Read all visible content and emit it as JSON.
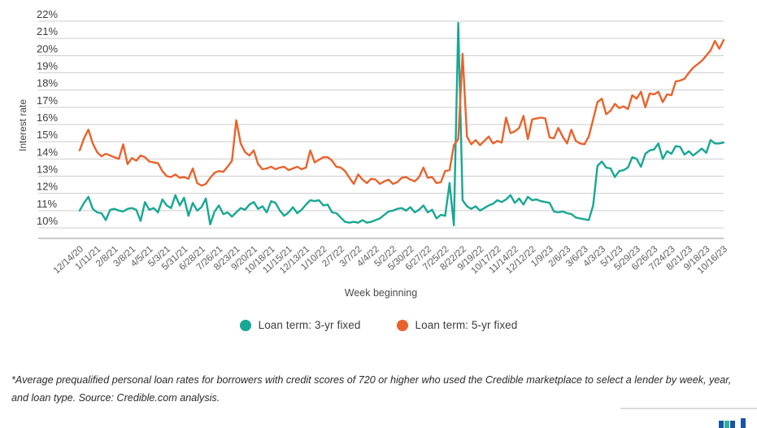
{
  "chart": {
    "y_axis_title": "Interest rate",
    "x_axis_title": "Week beginning",
    "footnote": "*Average prequalified personal loan rates for borrowers with credit scores of 720 or higher who used the Credible marketplace to select a lender by week, year, and loan type. Source: Credible.com analysis."
  },
  "legend": {
    "items": [
      {
        "label": "Loan term: 3-yr fixed",
        "color": "#18a794"
      },
      {
        "label": "Loan term: 5-yr fixed",
        "color": "#e8632c"
      }
    ]
  },
  "branding": {
    "bars": [
      {
        "color": "#1a55a5",
        "height": 9,
        "x": 0,
        "lift": 0
      },
      {
        "color": "#2eb39f",
        "height": 9,
        "x": 7,
        "lift": 0
      },
      {
        "color": "#1a55a5",
        "height": 9,
        "x": 14,
        "lift": 0
      },
      {
        "color": "#1a55a5",
        "height": 12,
        "x": 27,
        "lift": 0
      }
    ]
  },
  "chart_data": {
    "type": "line",
    "title": "",
    "xlabel": "Week beginning",
    "ylabel": "Interest rate",
    "ylim": [
      10,
      22
    ],
    "grid": true,
    "legend_position": "bottom",
    "y_ticks": [
      22,
      21,
      20,
      19,
      18,
      17,
      16,
      15,
      14,
      13,
      12,
      11,
      10
    ],
    "y_tick_labels": [
      "22%",
      "21%",
      "20%",
      "19%",
      "18%",
      "17%",
      "16%",
      "15%",
      "14%",
      "13%",
      "12%",
      "11%",
      "10%"
    ],
    "x_tick_step": 4,
    "x": [
      "12/14/20",
      "12/21/20",
      "12/28/20",
      "1/4/21",
      "1/11/21",
      "1/18/21",
      "1/25/21",
      "2/1/21",
      "2/8/21",
      "2/15/21",
      "2/22/21",
      "3/1/21",
      "3/8/21",
      "3/15/21",
      "3/22/21",
      "3/29/21",
      "4/5/21",
      "4/12/21",
      "4/19/21",
      "4/26/21",
      "5/3/21",
      "5/10/21",
      "5/17/21",
      "5/24/21",
      "5/31/21",
      "6/7/21",
      "6/14/21",
      "6/21/21",
      "6/28/21",
      "7/5/21",
      "7/12/21",
      "7/19/21",
      "7/26/21",
      "8/2/21",
      "8/9/21",
      "8/16/21",
      "8/23/21",
      "8/30/21",
      "9/6/21",
      "9/13/21",
      "9/20/21",
      "9/27/21",
      "10/4/21",
      "10/11/21",
      "10/18/21",
      "10/25/21",
      "11/1/21",
      "11/8/21",
      "11/15/21",
      "11/22/21",
      "11/29/21",
      "12/6/21",
      "12/13/21",
      "12/20/21",
      "12/27/21",
      "1/3/22",
      "1/10/22",
      "1/17/22",
      "1/24/22",
      "1/31/22",
      "2/7/22",
      "2/14/22",
      "2/21/22",
      "2/28/22",
      "3/7/22",
      "3/14/22",
      "3/21/22",
      "3/28/22",
      "4/4/22",
      "4/11/22",
      "4/18/22",
      "4/25/22",
      "5/2/22",
      "5/9/22",
      "5/16/22",
      "5/23/22",
      "5/30/22",
      "6/6/22",
      "6/13/22",
      "6/20/22",
      "6/27/22",
      "7/4/22",
      "7/11/22",
      "7/18/22",
      "7/25/22",
      "8/1/22",
      "8/8/22",
      "8/15/22",
      "8/22/22",
      "8/29/22",
      "9/5/22",
      "9/12/22",
      "9/19/22",
      "9/26/22",
      "10/3/22",
      "10/10/22",
      "10/17/22",
      "10/24/22",
      "10/31/22",
      "11/7/22",
      "11/14/22",
      "11/21/22",
      "11/28/22",
      "12/5/22",
      "12/12/22",
      "12/19/22",
      "12/26/22",
      "1/2/23",
      "1/9/23",
      "1/16/23",
      "1/23/23",
      "1/30/23",
      "2/6/23",
      "2/13/23",
      "2/20/23",
      "2/27/23",
      "3/6/23",
      "3/13/23",
      "3/20/23",
      "3/27/23",
      "4/3/23",
      "4/10/23",
      "4/17/23",
      "4/24/23",
      "5/1/23",
      "5/8/23",
      "5/15/23",
      "5/22/23",
      "5/29/23",
      "6/5/23",
      "6/12/23",
      "6/19/23",
      "6/26/23",
      "7/3/23",
      "7/10/23",
      "7/17/23",
      "7/24/23",
      "7/31/23",
      "8/7/23",
      "8/14/23",
      "8/21/23",
      "8/28/23",
      "9/4/23",
      "9/11/23",
      "9/18/23",
      "9/25/23",
      "10/2/23",
      "10/9/23",
      "10/16/23"
    ],
    "series": [
      {
        "name": "Loan term: 3-yr fixed",
        "color": "#18a794",
        "values": [
          11.0,
          11.45,
          11.8,
          11.1,
          10.9,
          10.85,
          10.45,
          11.05,
          11.1,
          11.0,
          10.95,
          11.1,
          11.15,
          11.05,
          10.4,
          11.5,
          11.05,
          11.15,
          10.9,
          11.65,
          11.3,
          11.15,
          11.9,
          11.3,
          11.75,
          10.7,
          11.45,
          11.0,
          11.2,
          11.7,
          10.2,
          10.95,
          11.3,
          10.8,
          10.9,
          10.65,
          10.9,
          11.15,
          11.05,
          11.35,
          11.5,
          11.1,
          11.25,
          10.9,
          11.55,
          11.45,
          11.0,
          10.7,
          10.9,
          11.2,
          10.85,
          11.05,
          11.35,
          11.6,
          11.55,
          11.6,
          11.3,
          11.35,
          10.9,
          10.85,
          10.6,
          10.35,
          10.3,
          10.35,
          10.3,
          10.45,
          10.3,
          10.35,
          10.45,
          10.55,
          10.75,
          10.95,
          11.0,
          11.1,
          11.15,
          11.0,
          11.2,
          10.9,
          11.05,
          11.3,
          10.9,
          11.05,
          10.55,
          10.75,
          10.7,
          12.6,
          10.15,
          21.9,
          11.6,
          11.25,
          11.1,
          11.25,
          11.0,
          11.15,
          11.3,
          11.4,
          11.6,
          11.5,
          11.65,
          11.9,
          11.45,
          11.7,
          11.35,
          11.8,
          11.6,
          11.65,
          11.55,
          11.5,
          11.45,
          10.95,
          10.9,
          10.95,
          10.85,
          10.8,
          10.6,
          10.55,
          10.5,
          10.45,
          11.3,
          13.6,
          13.85,
          13.5,
          13.45,
          12.95,
          13.3,
          13.35,
          13.5,
          14.1,
          14.0,
          13.55,
          14.3,
          14.5,
          14.55,
          14.9,
          14.0,
          14.45,
          14.3,
          14.75,
          14.7,
          14.25,
          14.45,
          14.2,
          14.4,
          14.6,
          14.35,
          15.1,
          14.9,
          14.9,
          14.95
        ]
      },
      {
        "name": "Loan term: 5-yr fixed",
        "color": "#e8632c",
        "values": [
          14.5,
          15.2,
          15.7,
          14.9,
          14.4,
          14.15,
          14.3,
          14.2,
          14.1,
          14.0,
          14.85,
          13.7,
          14.05,
          13.9,
          14.2,
          14.1,
          13.85,
          13.8,
          13.75,
          13.3,
          13.0,
          12.95,
          13.1,
          12.9,
          12.95,
          12.85,
          13.45,
          12.6,
          12.45,
          12.55,
          12.9,
          13.2,
          13.3,
          13.25,
          13.55,
          13.9,
          16.25,
          14.9,
          14.4,
          14.2,
          14.5,
          13.7,
          13.4,
          13.45,
          13.55,
          13.4,
          13.5,
          13.55,
          13.35,
          13.45,
          13.55,
          13.4,
          13.5,
          14.5,
          13.8,
          13.95,
          14.1,
          14.1,
          13.9,
          13.55,
          13.5,
          13.3,
          12.9,
          12.55,
          13.1,
          12.8,
          12.6,
          12.85,
          12.8,
          12.55,
          12.7,
          12.8,
          12.55,
          12.65,
          12.9,
          12.95,
          12.8,
          12.7,
          12.95,
          13.5,
          12.9,
          12.95,
          12.6,
          12.65,
          13.3,
          13.35,
          14.8,
          15.15,
          20.1,
          15.3,
          14.85,
          15.1,
          14.8,
          15.05,
          15.3,
          14.9,
          15.05,
          14.95,
          16.4,
          15.5,
          15.6,
          15.8,
          16.5,
          15.15,
          16.3,
          16.35,
          16.4,
          16.35,
          15.25,
          15.2,
          15.8,
          15.3,
          14.9,
          15.7,
          15.05,
          14.9,
          14.85,
          15.3,
          16.3,
          17.3,
          17.5,
          16.6,
          16.8,
          17.2,
          16.95,
          17.05,
          16.9,
          17.7,
          17.5,
          17.9,
          17.0,
          17.8,
          17.75,
          17.9,
          17.3,
          17.75,
          17.7,
          18.5,
          18.55,
          18.65,
          19.0,
          19.3,
          19.5,
          19.7,
          20.0,
          20.3,
          20.85,
          20.4,
          20.9
        ]
      }
    ]
  }
}
